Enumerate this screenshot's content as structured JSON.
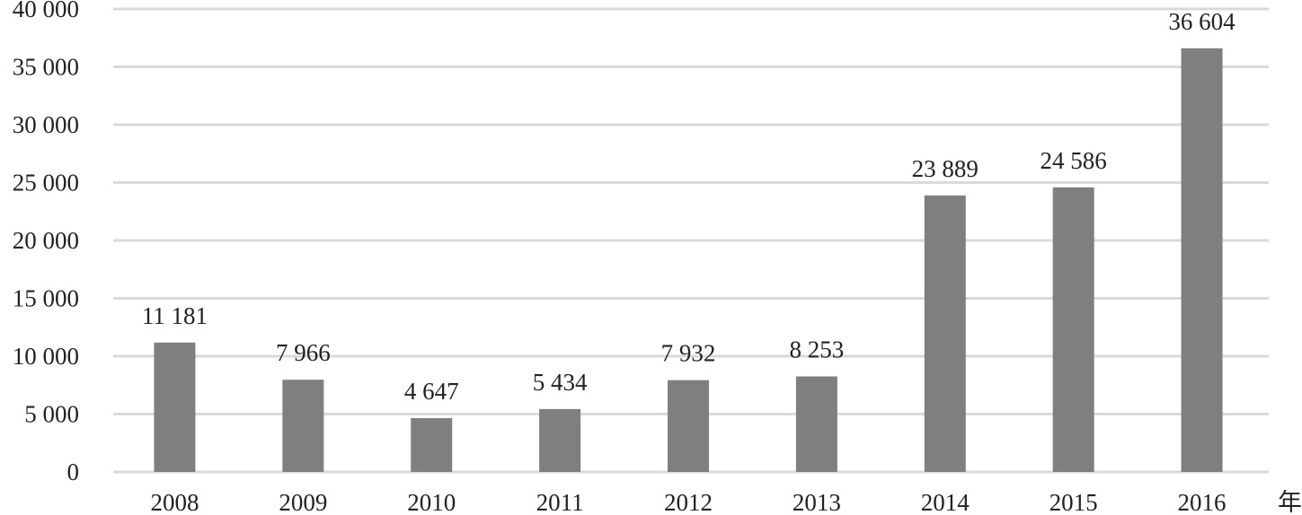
{
  "chart_data": {
    "type": "bar",
    "title": "",
    "xlabel": "年",
    "ylabel": "",
    "categories": [
      "2008",
      "2009",
      "2010",
      "2011",
      "2012",
      "2013",
      "2014",
      "2015",
      "2016"
    ],
    "values": [
      11181,
      7966,
      4647,
      5434,
      7932,
      8253,
      23889,
      24586,
      36604
    ],
    "value_labels": [
      "11 181",
      "7 966",
      "4 647",
      "5 434",
      "7 932",
      "8 253",
      "23 889",
      "24 586",
      "36 604"
    ],
    "ylim": [
      0,
      40000
    ],
    "yticks": [
      0,
      5000,
      10000,
      15000,
      20000,
      25000,
      30000,
      35000,
      40000
    ],
    "ytick_labels": [
      "0",
      "5 000",
      "10 000",
      "15 000",
      "20 000",
      "25 000",
      "30 000",
      "35 000",
      "40 000"
    ],
    "grid": true,
    "legend": "none",
    "colors": {
      "bar": "#7f7f7f",
      "grid": "#d9d9d9",
      "text": "#222222"
    }
  }
}
